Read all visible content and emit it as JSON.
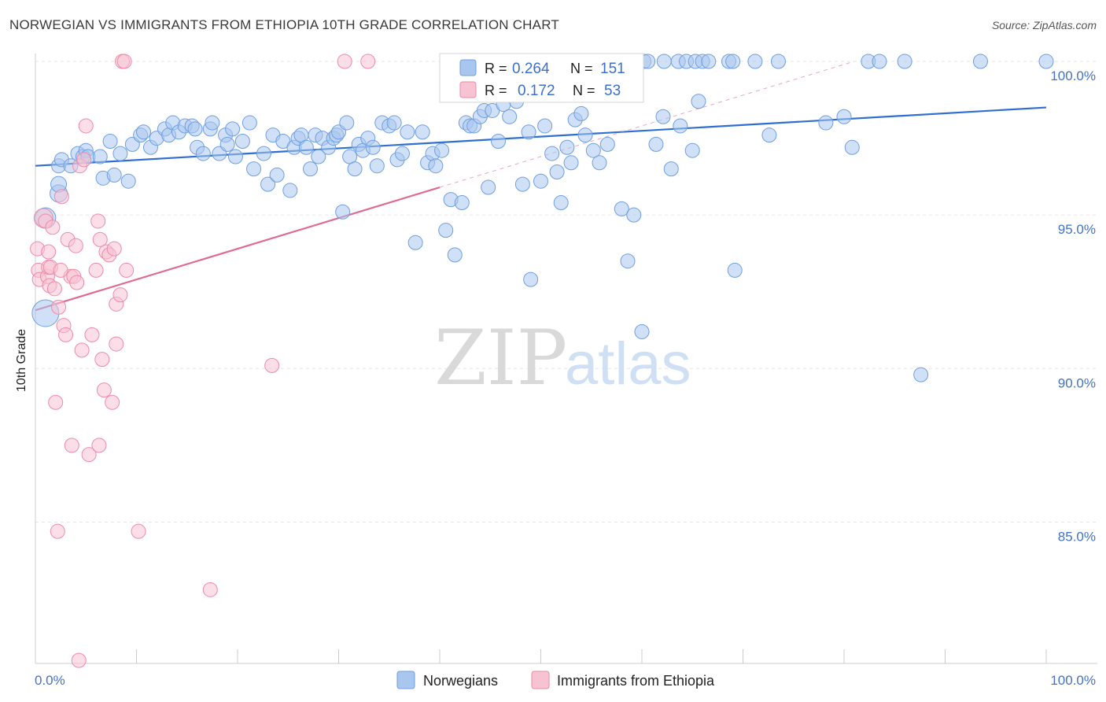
{
  "title": "NORWEGIAN VS IMMIGRANTS FROM ETHIOPIA 10TH GRADE CORRELATION CHART",
  "source": "Source: ZipAtlas.com",
  "watermark": {
    "zip": "ZIP",
    "atlas": "atlas"
  },
  "legend_box": {
    "r_label": "R =",
    "n_label": "N =",
    "rows": [
      {
        "r": "0.264",
        "n": "151"
      },
      {
        "r": "0.172",
        "n": "53"
      }
    ]
  },
  "bottom_legend": [
    "Norwegians",
    "Immigrants from Ethiopia"
  ],
  "colors": {
    "blue_fill": "#a9c6ee",
    "blue_stroke": "#6f9fe0",
    "blue_line": "#2f6fd0",
    "pink_fill": "#f7c3d3",
    "pink_stroke": "#ee8aaa",
    "pink_line": "#e06a96",
    "axis_label": "#4472c4"
  },
  "chart_data": {
    "type": "scatter",
    "title": "NORWEGIAN VS IMMIGRANTS FROM ETHIOPIA 10TH GRADE CORRELATION CHART",
    "xlabel": "",
    "ylabel": "10th Grade",
    "x_tick_labels": [
      "0.0%",
      "100.0%"
    ],
    "y_tick_labels": [
      "100.0%",
      "95.0%",
      "90.0%",
      "85.0%"
    ],
    "xlim": [
      0,
      100
    ],
    "ylim": [
      80.4,
      100.5
    ],
    "grid": true,
    "legend_position": "bottom",
    "series": [
      {
        "name": "Norwegians",
        "R": 0.264,
        "N": 151,
        "trend": {
          "x": [
            0,
            100
          ],
          "y": [
            96.6,
            98.5
          ]
        },
        "points": [
          [
            2.3,
            95.7
          ],
          [
            2.3,
            96.0
          ],
          [
            1.0,
            91.8
          ],
          [
            1.0,
            94.9
          ],
          [
            2.3,
            96.6
          ],
          [
            2.6,
            96.8
          ],
          [
            3.5,
            96.6
          ],
          [
            4.2,
            97.0
          ],
          [
            4.7,
            96.9
          ],
          [
            5.0,
            97.1
          ],
          [
            5.2,
            96.9
          ],
          [
            6.4,
            96.9
          ],
          [
            6.7,
            96.2
          ],
          [
            7.4,
            97.4
          ],
          [
            7.8,
            96.3
          ],
          [
            8.4,
            97.0
          ],
          [
            9.2,
            96.1
          ],
          [
            9.6,
            97.3
          ],
          [
            10.4,
            97.6
          ],
          [
            10.7,
            97.7
          ],
          [
            11.4,
            97.2
          ],
          [
            12.0,
            97.5
          ],
          [
            12.8,
            97.8
          ],
          [
            13.2,
            97.6
          ],
          [
            13.6,
            98.0
          ],
          [
            14.2,
            97.7
          ],
          [
            14.8,
            97.9
          ],
          [
            15.5,
            97.9
          ],
          [
            15.8,
            97.8
          ],
          [
            16.0,
            97.2
          ],
          [
            16.6,
            97.0
          ],
          [
            17.3,
            97.8
          ],
          [
            17.5,
            98.0
          ],
          [
            18.2,
            97.0
          ],
          [
            18.8,
            97.6
          ],
          [
            19.0,
            97.3
          ],
          [
            19.5,
            97.8
          ],
          [
            19.8,
            96.9
          ],
          [
            20.5,
            97.4
          ],
          [
            21.2,
            98.0
          ],
          [
            21.6,
            96.5
          ],
          [
            22.6,
            97.0
          ],
          [
            23.0,
            96.0
          ],
          [
            23.5,
            97.6
          ],
          [
            23.9,
            96.3
          ],
          [
            24.5,
            97.4
          ],
          [
            25.2,
            95.8
          ],
          [
            25.6,
            97.2
          ],
          [
            26.0,
            97.5
          ],
          [
            26.3,
            97.6
          ],
          [
            26.8,
            97.2
          ],
          [
            27.2,
            96.5
          ],
          [
            27.7,
            97.6
          ],
          [
            28.0,
            96.9
          ],
          [
            28.4,
            97.5
          ],
          [
            29.0,
            97.2
          ],
          [
            29.5,
            97.5
          ],
          [
            29.8,
            97.6
          ],
          [
            30.0,
            97.7
          ],
          [
            30.4,
            95.1
          ],
          [
            30.8,
            98.0
          ],
          [
            31.1,
            96.9
          ],
          [
            31.6,
            96.5
          ],
          [
            32.0,
            97.3
          ],
          [
            32.4,
            97.1
          ],
          [
            32.9,
            97.5
          ],
          [
            33.4,
            97.2
          ],
          [
            33.8,
            96.6
          ],
          [
            34.3,
            98.0
          ],
          [
            35.0,
            97.9
          ],
          [
            35.5,
            98.0
          ],
          [
            35.8,
            96.8
          ],
          [
            36.3,
            97.0
          ],
          [
            36.8,
            97.7
          ],
          [
            37.6,
            94.1
          ],
          [
            38.3,
            97.7
          ],
          [
            38.8,
            96.7
          ],
          [
            39.3,
            97.0
          ],
          [
            39.6,
            96.6
          ],
          [
            40.2,
            97.1
          ],
          [
            40.6,
            94.5
          ],
          [
            41.1,
            95.5
          ],
          [
            41.5,
            93.7
          ],
          [
            42.2,
            95.4
          ],
          [
            42.6,
            98.0
          ],
          [
            43.0,
            97.9
          ],
          [
            43.4,
            97.9
          ],
          [
            44.0,
            98.2
          ],
          [
            44.4,
            98.4
          ],
          [
            44.8,
            95.9
          ],
          [
            45.2,
            98.4
          ],
          [
            45.8,
            97.4
          ],
          [
            46.3,
            98.6
          ],
          [
            46.9,
            98.2
          ],
          [
            47.6,
            98.7
          ],
          [
            48.2,
            96.0
          ],
          [
            48.8,
            97.7
          ],
          [
            49.0,
            92.9
          ],
          [
            50.0,
            96.1
          ],
          [
            50.4,
            97.9
          ],
          [
            51.1,
            97.0
          ],
          [
            51.6,
            96.4
          ],
          [
            52.0,
            95.4
          ],
          [
            52.6,
            97.2
          ],
          [
            53.0,
            96.7
          ],
          [
            53.4,
            98.1
          ],
          [
            54.0,
            98.3
          ],
          [
            54.4,
            97.6
          ],
          [
            55.2,
            97.1
          ],
          [
            55.8,
            96.7
          ],
          [
            56.6,
            97.3
          ],
          [
            58.0,
            95.2
          ],
          [
            58.6,
            93.5
          ],
          [
            59.2,
            95.0
          ],
          [
            60.0,
            91.2
          ],
          [
            61.4,
            97.3
          ],
          [
            62.1,
            98.2
          ],
          [
            62.9,
            96.5
          ],
          [
            63.8,
            97.9
          ],
          [
            65.0,
            97.1
          ],
          [
            65.6,
            98.7
          ],
          [
            69.2,
            93.2
          ],
          [
            72.6,
            97.6
          ],
          [
            78.2,
            98.0
          ],
          [
            80.0,
            98.2
          ],
          [
            80.8,
            97.2
          ],
          [
            87.6,
            89.8
          ],
          [
            60.2,
            100.0
          ],
          [
            60.6,
            100.0
          ],
          [
            62.2,
            100.0
          ],
          [
            63.6,
            100.0
          ],
          [
            64.4,
            100.0
          ],
          [
            65.3,
            100.0
          ],
          [
            66.0,
            100.0
          ],
          [
            66.6,
            100.0
          ],
          [
            68.6,
            100.0
          ],
          [
            69.0,
            100.0
          ],
          [
            71.2,
            100.0
          ],
          [
            73.5,
            100.0
          ],
          [
            82.4,
            100.0
          ],
          [
            83.5,
            100.0
          ],
          [
            86.0,
            100.0
          ],
          [
            93.5,
            100.0
          ],
          [
            100.0,
            100.0
          ],
          [
            54.5,
            99.0
          ],
          [
            55.0,
            99.4
          ],
          [
            56.2,
            100.0
          ],
          [
            57.0,
            99.7
          ],
          [
            55.5,
            99.8
          ],
          [
            58.7,
            100.0
          ]
        ]
      },
      {
        "name": "Immigrants from Ethiopia",
        "R": 0.172,
        "N": 53,
        "trend": {
          "x": [
            0,
            40
          ],
          "y": [
            91.9,
            95.9
          ]
        },
        "points": [
          [
            0.2,
            93.9
          ],
          [
            0.3,
            93.2
          ],
          [
            0.4,
            92.9
          ],
          [
            0.8,
            94.9
          ],
          [
            1.0,
            94.8
          ],
          [
            1.2,
            93.0
          ],
          [
            1.3,
            93.3
          ],
          [
            1.4,
            92.7
          ],
          [
            1.5,
            93.3
          ],
          [
            1.7,
            94.6
          ],
          [
            1.9,
            92.6
          ],
          [
            2.0,
            88.9
          ],
          [
            2.2,
            84.7
          ],
          [
            2.3,
            92.0
          ],
          [
            2.6,
            95.6
          ],
          [
            2.8,
            91.4
          ],
          [
            3.0,
            91.1
          ],
          [
            3.2,
            94.2
          ],
          [
            3.5,
            93.0
          ],
          [
            3.6,
            87.5
          ],
          [
            3.8,
            93.0
          ],
          [
            4.0,
            94.0
          ],
          [
            4.1,
            92.8
          ],
          [
            4.4,
            96.6
          ],
          [
            4.6,
            90.6
          ],
          [
            4.8,
            96.8
          ],
          [
            5.0,
            97.9
          ],
          [
            5.3,
            87.2
          ],
          [
            5.6,
            91.1
          ],
          [
            6.0,
            93.2
          ],
          [
            6.2,
            94.8
          ],
          [
            6.3,
            87.5
          ],
          [
            6.4,
            94.2
          ],
          [
            6.6,
            90.3
          ],
          [
            6.8,
            89.3
          ],
          [
            7.0,
            93.8
          ],
          [
            7.3,
            93.7
          ],
          [
            7.6,
            88.9
          ],
          [
            7.8,
            93.9
          ],
          [
            8.0,
            90.8
          ],
          [
            8.0,
            92.1
          ],
          [
            8.4,
            92.4
          ],
          [
            8.6,
            100.0
          ],
          [
            8.8,
            100.0
          ],
          [
            9.0,
            93.2
          ],
          [
            10.2,
            84.7
          ],
          [
            17.3,
            82.8
          ],
          [
            23.4,
            90.1
          ],
          [
            30.6,
            100.0
          ],
          [
            32.9,
            100.0
          ],
          [
            4.3,
            80.5
          ],
          [
            1.3,
            93.8
          ],
          [
            2.5,
            93.2
          ]
        ]
      }
    ]
  }
}
